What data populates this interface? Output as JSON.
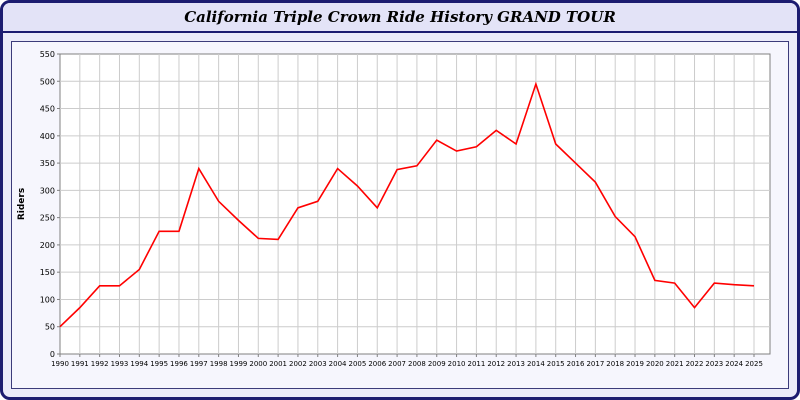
{
  "window": {
    "title": "California Triple Crown Ride History GRAND TOUR"
  },
  "chart_data": {
    "type": "line",
    "title": "California Triple Crown Ride History GRAND TOUR",
    "xlabel": "",
    "ylabel": "Riders",
    "ylim": [
      0,
      550
    ],
    "ytick_step": 50,
    "grid": true,
    "legend": "none",
    "line_color": "#ff0000",
    "categories": [
      "1990",
      "1991",
      "1992",
      "1993",
      "1994",
      "1995",
      "1996",
      "1997",
      "1998",
      "1999",
      "2000",
      "2001",
      "2002",
      "2003",
      "2004",
      "2005",
      "2006",
      "2007",
      "2008",
      "2009",
      "2010",
      "2011",
      "2012",
      "2013",
      "2014",
      "2015",
      "2016",
      "2017",
      "2018",
      "2019",
      "2020",
      "2021",
      "2022",
      "2023",
      "2024",
      "2025"
    ],
    "series": [
      {
        "name": "Riders",
        "values": [
          50,
          85,
          125,
          125,
          155,
          225,
          225,
          340,
          280,
          245,
          212,
          210,
          268,
          280,
          340,
          308,
          268,
          338,
          345,
          392,
          372,
          380,
          410,
          385,
          495,
          385,
          350,
          315,
          252,
          215,
          135,
          130,
          85,
          130,
          127,
          125
        ]
      }
    ]
  },
  "colors": {
    "window_border": "#1c1c70",
    "titlebar_bg": "#e3e3f7",
    "body_bg": "#ebebf9",
    "panel_bg": "#f6f6fd",
    "plot_bg": "#ffffff",
    "grid": "#cccccc",
    "line": "#ff0000"
  }
}
